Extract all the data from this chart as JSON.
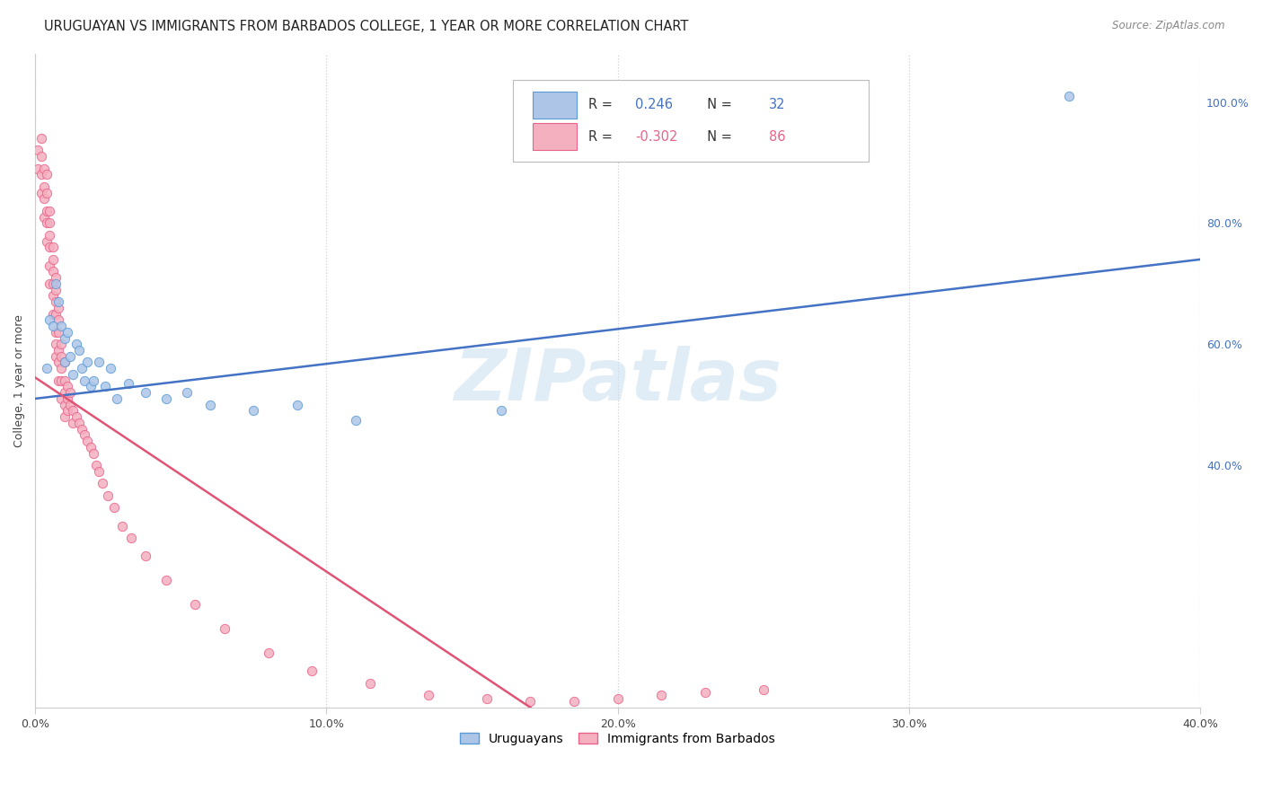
{
  "title": "URUGUAYAN VS IMMIGRANTS FROM BARBADOS COLLEGE, 1 YEAR OR MORE CORRELATION CHART",
  "source": "Source: ZipAtlas.com",
  "ylabel": "College, 1 year or more",
  "watermark": "ZIPatlas",
  "xlim": [
    0.0,
    0.4
  ],
  "ylim": [
    0.0,
    1.08
  ],
  "xtick_labels": [
    "0.0%",
    "10.0%",
    "20.0%",
    "30.0%",
    "40.0%"
  ],
  "xtick_values": [
    0.0,
    0.1,
    0.2,
    0.3,
    0.4
  ],
  "ytick_labels_right": [
    "40.0%",
    "60.0%",
    "80.0%",
    "100.0%"
  ],
  "ytick_values_right": [
    0.4,
    0.6,
    0.8,
    1.0
  ],
  "blue_color": "#adc6e8",
  "pink_color": "#f5b0c0",
  "blue_edge_color": "#5b9bd5",
  "pink_edge_color": "#e8638a",
  "blue_line_color": "#4472c4",
  "pink_line_color": "#e05575",
  "legend_R_blue": "0.246",
  "legend_N_blue": "32",
  "legend_R_pink": "-0.302",
  "legend_N_pink": "86",
  "legend_label_blue": "Uruguayans",
  "legend_label_pink": "Immigrants from Barbados",
  "blue_scatter_x": [
    0.004,
    0.005,
    0.006,
    0.007,
    0.008,
    0.009,
    0.01,
    0.01,
    0.011,
    0.012,
    0.013,
    0.014,
    0.015,
    0.016,
    0.017,
    0.018,
    0.019,
    0.02,
    0.022,
    0.024,
    0.026,
    0.028,
    0.032,
    0.038,
    0.045,
    0.052,
    0.06,
    0.075,
    0.09,
    0.11,
    0.16,
    0.355
  ],
  "blue_scatter_y": [
    0.56,
    0.64,
    0.63,
    0.7,
    0.67,
    0.63,
    0.61,
    0.57,
    0.62,
    0.58,
    0.55,
    0.6,
    0.59,
    0.56,
    0.54,
    0.57,
    0.53,
    0.54,
    0.57,
    0.53,
    0.56,
    0.51,
    0.535,
    0.52,
    0.51,
    0.52,
    0.5,
    0.49,
    0.5,
    0.475,
    0.49,
    1.01
  ],
  "pink_scatter_x": [
    0.001,
    0.001,
    0.002,
    0.002,
    0.002,
    0.002,
    0.003,
    0.003,
    0.003,
    0.003,
    0.004,
    0.004,
    0.004,
    0.004,
    0.004,
    0.005,
    0.005,
    0.005,
    0.005,
    0.005,
    0.005,
    0.006,
    0.006,
    0.006,
    0.006,
    0.006,
    0.006,
    0.007,
    0.007,
    0.007,
    0.007,
    0.007,
    0.007,
    0.007,
    0.008,
    0.008,
    0.008,
    0.008,
    0.008,
    0.008,
    0.009,
    0.009,
    0.009,
    0.009,
    0.009,
    0.01,
    0.01,
    0.01,
    0.01,
    0.01,
    0.011,
    0.011,
    0.011,
    0.012,
    0.012,
    0.013,
    0.013,
    0.014,
    0.015,
    0.016,
    0.017,
    0.018,
    0.019,
    0.02,
    0.021,
    0.022,
    0.023,
    0.025,
    0.027,
    0.03,
    0.033,
    0.038,
    0.045,
    0.055,
    0.065,
    0.08,
    0.095,
    0.115,
    0.135,
    0.155,
    0.17,
    0.185,
    0.2,
    0.215,
    0.23,
    0.25
  ],
  "pink_scatter_y": [
    0.92,
    0.89,
    0.94,
    0.91,
    0.88,
    0.85,
    0.89,
    0.86,
    0.84,
    0.81,
    0.88,
    0.85,
    0.82,
    0.8,
    0.77,
    0.82,
    0.8,
    0.78,
    0.76,
    0.73,
    0.7,
    0.76,
    0.74,
    0.72,
    0.7,
    0.68,
    0.65,
    0.71,
    0.69,
    0.67,
    0.65,
    0.62,
    0.6,
    0.58,
    0.66,
    0.64,
    0.62,
    0.59,
    0.57,
    0.54,
    0.6,
    0.58,
    0.56,
    0.54,
    0.51,
    0.57,
    0.54,
    0.52,
    0.5,
    0.48,
    0.53,
    0.51,
    0.49,
    0.52,
    0.5,
    0.49,
    0.47,
    0.48,
    0.47,
    0.46,
    0.45,
    0.44,
    0.43,
    0.42,
    0.4,
    0.39,
    0.37,
    0.35,
    0.33,
    0.3,
    0.28,
    0.25,
    0.21,
    0.17,
    0.13,
    0.09,
    0.06,
    0.04,
    0.02,
    0.015,
    0.01,
    0.01,
    0.015,
    0.02,
    0.025,
    0.03
  ],
  "blue_line_x": [
    0.0,
    0.4
  ],
  "blue_line_y": [
    0.51,
    0.74
  ],
  "pink_line_x": [
    0.0,
    0.17
  ],
  "pink_line_y": [
    0.545,
    0.0
  ],
  "background_color": "#ffffff",
  "grid_color": "#d0d0d0",
  "title_fontsize": 10.5,
  "axis_label_fontsize": 9,
  "tick_fontsize": 9,
  "scatter_size": 55
}
